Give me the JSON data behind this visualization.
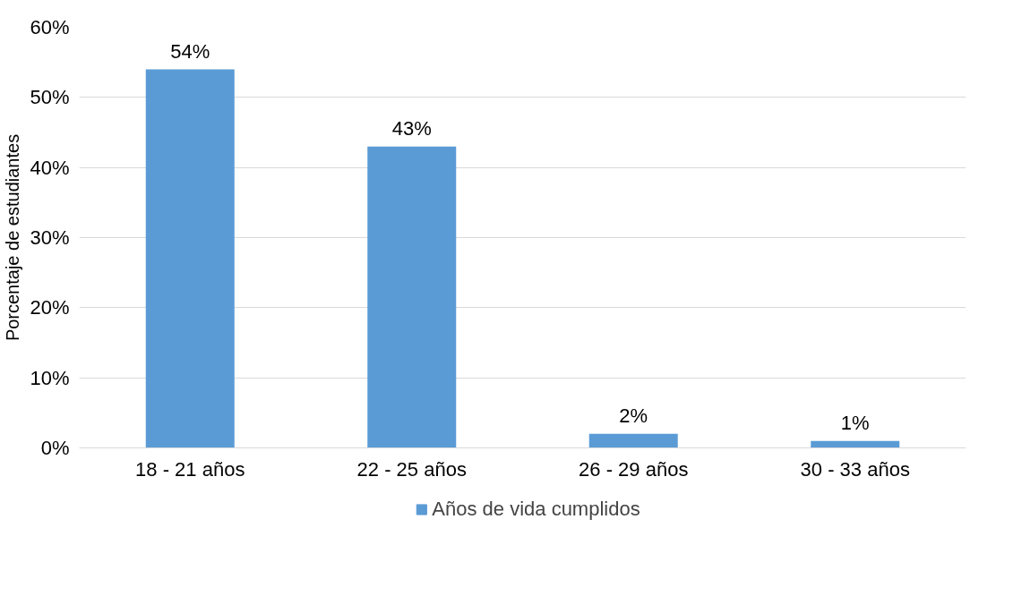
{
  "chart_data": {
    "type": "bar",
    "ylabel": "Porcentaje de estudiantes",
    "categories": [
      "18 - 21 años",
      "22 - 25 años",
      "26 - 29 años",
      "30 - 33 años"
    ],
    "series": [
      {
        "name": "Años de vida cumplidos",
        "color": "#5b9bd5",
        "values": [
          54,
          43,
          2,
          1
        ]
      }
    ],
    "value_labels": [
      "54%",
      "43%",
      "2%",
      "1%"
    ],
    "ylim": [
      0,
      60
    ],
    "yticks": [
      {
        "value": 0,
        "label": "0%"
      },
      {
        "value": 10,
        "label": "10%"
      },
      {
        "value": 20,
        "label": "20%"
      },
      {
        "value": 30,
        "label": "30%"
      },
      {
        "value": 40,
        "label": "40%"
      },
      {
        "value": 50,
        "label": "50%"
      },
      {
        "value": 60,
        "label": "60%"
      }
    ],
    "grid": "y",
    "legend": "bottom"
  }
}
